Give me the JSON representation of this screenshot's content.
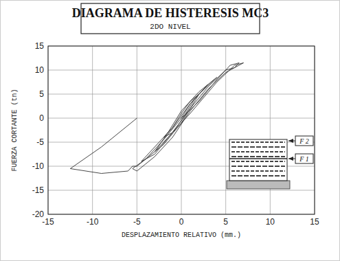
{
  "chart_data": {
    "type": "line",
    "title": "DIAGRAMA DE HISTERESIS MC3",
    "subtitle": "2DO NIVEL",
    "x_label": "DESPLAZAMIENTO RELATIVO (mm.)",
    "y_label": "FUERZA CORTANTE (tn)",
    "x": [
      0,
      1,
      2,
      1,
      0,
      -1,
      -2,
      -1,
      0,
      1.5,
      3,
      2,
      0,
      -1.5,
      -3,
      -2,
      0,
      2,
      4,
      3,
      1,
      -1,
      -3,
      -4.5,
      -3,
      -1,
      1,
      3,
      5,
      6,
      6.5,
      5.5,
      4,
      2,
      0,
      -2,
      -4,
      -5.5,
      -5,
      -3,
      -1,
      1,
      3,
      5,
      6.5,
      7,
      6,
      4,
      1,
      -1,
      -3,
      -5,
      -5.5,
      -6,
      -9,
      -12.5,
      -9,
      -5
    ],
    "values": [
      0,
      3,
      5,
      3.5,
      1,
      -2,
      -4,
      -3,
      -0.5,
      4,
      7,
      5.5,
      1.5,
      -3,
      -7,
      -5.5,
      -1,
      5,
      8.5,
      7,
      3,
      -2,
      -6,
      -9,
      -7.5,
      -3,
      2,
      6.5,
      10,
      10.5,
      11.5,
      11,
      8,
      3.5,
      0,
      -4.5,
      -8.5,
      -10.5,
      -11,
      -8,
      -4,
      1.5,
      6,
      9.5,
      11,
      11.5,
      11,
      7.5,
      1,
      -3,
      -7,
      -10,
      -10,
      -11,
      -11.5,
      -10.5,
      -6,
      0
    ],
    "color": "#333333",
    "xlim": [
      -15,
      15
    ],
    "xticks": [
      -15,
      -10,
      -5,
      0,
      5,
      10,
      15
    ],
    "ylim": [
      -20,
      15
    ],
    "yticks": [
      -20,
      -15,
      -10,
      -5,
      0,
      5,
      10,
      15
    ],
    "grid": true,
    "annotations": [
      "F 2",
      "F 1"
    ]
  }
}
